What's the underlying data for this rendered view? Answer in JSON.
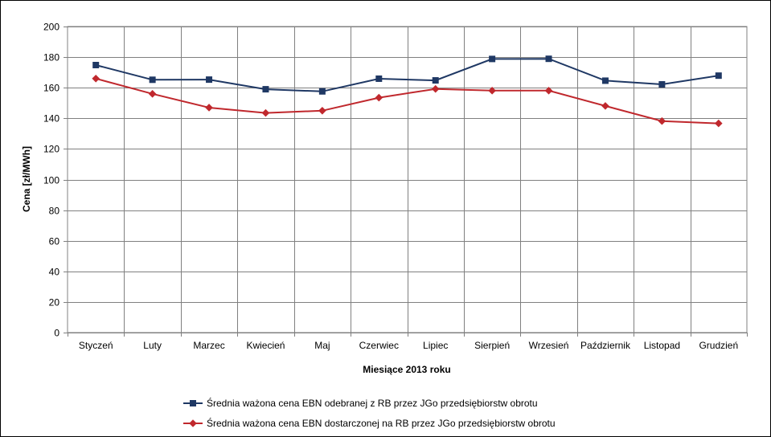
{
  "chart_data": {
    "type": "line",
    "title": "",
    "xlabel": "Miesiące 2013  roku",
    "ylabel": "Cena [zł/MWh]",
    "ylim": [
      0,
      200
    ],
    "yticks": [
      "0",
      "20",
      "40",
      "60",
      "80",
      "100",
      "120",
      "140",
      "160",
      "180",
      "200"
    ],
    "grid": true,
    "legend_position": "bottom",
    "categories": [
      "Styczeń",
      "Luty",
      "Marzec",
      "Kwiecień",
      "Maj",
      "Czerwiec",
      "Lipiec",
      "Sierpień",
      "Wrzesień",
      "Październik",
      "Listopad",
      "Grudzień"
    ],
    "series": [
      {
        "name": "Średnia ważona cena EBN odebranej z RB przez JGo przedsiębiorstw obrotu",
        "color": "#1f3864",
        "marker": "square",
        "values": [
          174.8,
          165.2,
          165.3,
          159.0,
          157.6,
          165.9,
          164.8,
          178.8,
          178.9,
          164.6,
          162.2,
          167.9
        ]
      },
      {
        "name": "Średnia ważona cena EBN dostarczonej na RB przez JGo przedsiębiorstw obrotu",
        "color": "#c0282d",
        "marker": "diamond",
        "values": [
          166.0,
          156.0,
          147.0,
          143.5,
          145.0,
          153.5,
          159.2,
          158.1,
          158.1,
          148.1,
          138.2,
          136.7
        ]
      }
    ]
  }
}
